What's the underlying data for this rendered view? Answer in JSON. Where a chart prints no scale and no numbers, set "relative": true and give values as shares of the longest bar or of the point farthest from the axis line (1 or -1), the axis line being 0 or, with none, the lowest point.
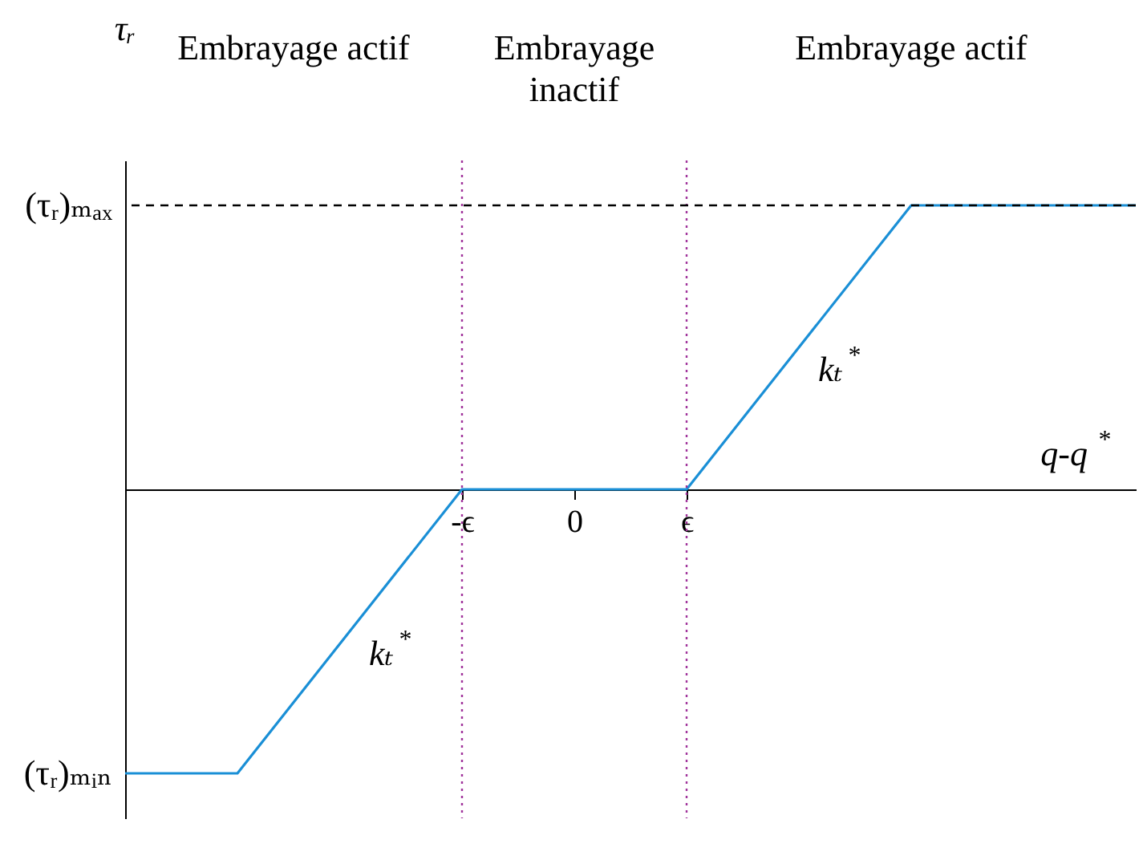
{
  "chart_data": {
    "type": "line",
    "relative": true,
    "xlabel": "q-q$^{*}$",
    "ylabel": "τᵣ",
    "categories": [
      null,
      null,
      null,
      "-ϵ",
      "0",
      "ϵ",
      null,
      null,
      null,
      null
    ],
    "series": [
      {
        "color": "#1a8fd6",
        "values": [
          -1,
          -1,
          -0.5,
          0,
          0,
          0,
          0.5,
          1,
          1,
          1
        ]
      }
    ],
    "ref_lines": [
      {
        "axis": "x",
        "value": "-ϵ",
        "color": "#a0339b",
        "line_style": "dotted"
      },
      {
        "axis": "x",
        "value": "ϵ",
        "color": "#a0339b",
        "line_style": "dotted"
      },
      {
        "axis": "y",
        "value": 1,
        "color": "#000000",
        "line_style": "dashed"
      }
    ],
    "annotations": [
      "Embrayage actif",
      "Embrayage inactif",
      "Embrayage actif",
      "kₜ$^{*}$",
      "kₜ$^{*}$",
      "(τᵣ)ₘₐₓ",
      "(τᵣ)ₘᵢₙ"
    ],
    "grid": false,
    "marker": "none",
    "line_style": "solid"
  }
}
